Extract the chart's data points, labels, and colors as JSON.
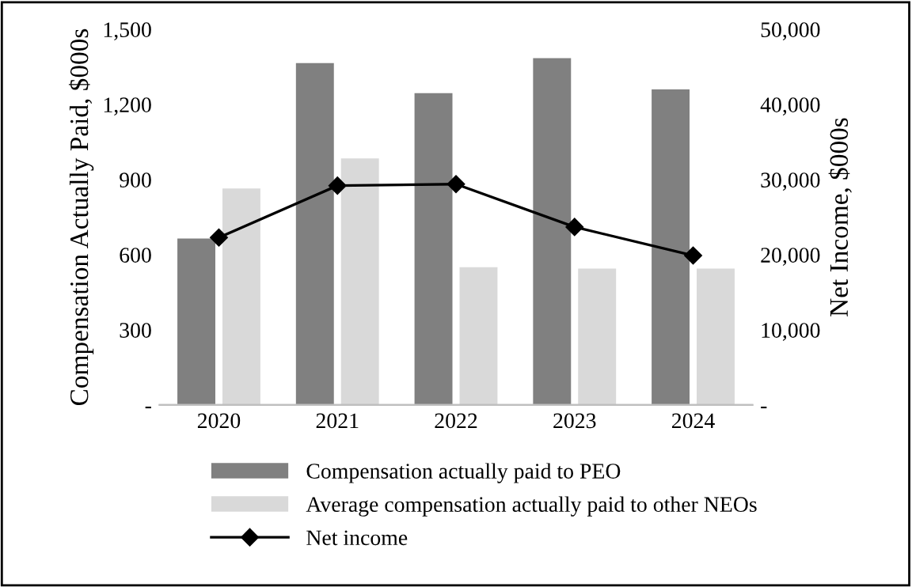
{
  "chart_data": {
    "type": "bar",
    "categories": [
      "2020",
      "2021",
      "2022",
      "2023",
      "2024"
    ],
    "ylabel": "Compensation Actually Paid, $000s",
    "y2label": "Net Income, $000s",
    "series": [
      {
        "name": "Compensation actually paid to PEO",
        "color": "#808080",
        "values": [
          665,
          1365,
          1245,
          1385,
          1260
        ]
      },
      {
        "name": "Average compensation actually paid to other NEOs",
        "color": "#d9d9d9",
        "values": [
          865,
          985,
          550,
          545,
          545
        ]
      },
      {
        "name": "Net income",
        "type": "line",
        "axis": "y2",
        "color": "#000000",
        "marker": "diamond",
        "line_style": "solid",
        "values": [
          22300,
          29200,
          29400,
          23700,
          19900
        ]
      }
    ],
    "ylim": [
      0,
      1500
    ],
    "yticks": [
      {
        "value": 0,
        "label": "-"
      },
      300,
      600,
      900,
      {
        "value": 1200,
        "label": "1,200"
      },
      {
        "value": 1500,
        "label": "1,500"
      }
    ],
    "y2lim": [
      0,
      50000
    ],
    "y2ticks": [
      {
        "value": 0,
        "label": "-"
      },
      {
        "value": 10000,
        "label": "10,000"
      },
      {
        "value": 20000,
        "label": "20,000"
      },
      {
        "value": 30000,
        "label": "30,000"
      },
      {
        "value": 40000,
        "label": "40,000"
      },
      {
        "value": 50000,
        "label": "50,000"
      }
    ],
    "legend": "bottom",
    "grid": false
  }
}
